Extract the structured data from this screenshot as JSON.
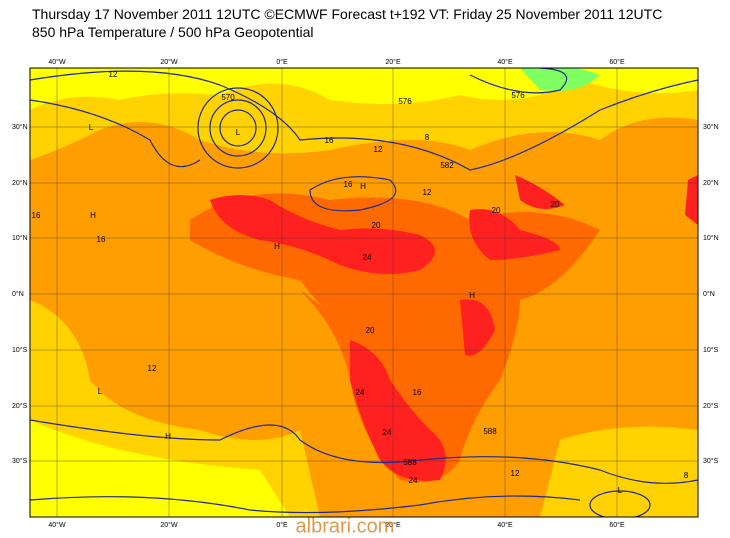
{
  "header": {
    "line1": "Thursday 17 November 2011 12UTC ©ECMWF Forecast t+192 VT: Friday 25 November 2011 12UTC",
    "line2": "850 hPa Temperature / 500 hPa Geopotential"
  },
  "lon_labels": [
    "40°W",
    "20°W",
    "0°E",
    "20°E",
    "40°E",
    "60°E"
  ],
  "lat_labels": [
    "30°N",
    "20°N",
    "10°N",
    "0°N",
    "10°S",
    "20°S",
    "30°S"
  ],
  "contour_labels": [
    "570",
    "576",
    "582",
    "588",
    "8",
    "12",
    "16",
    "20",
    "24",
    "H",
    "L"
  ],
  "watermark": "albrari.com"
}
